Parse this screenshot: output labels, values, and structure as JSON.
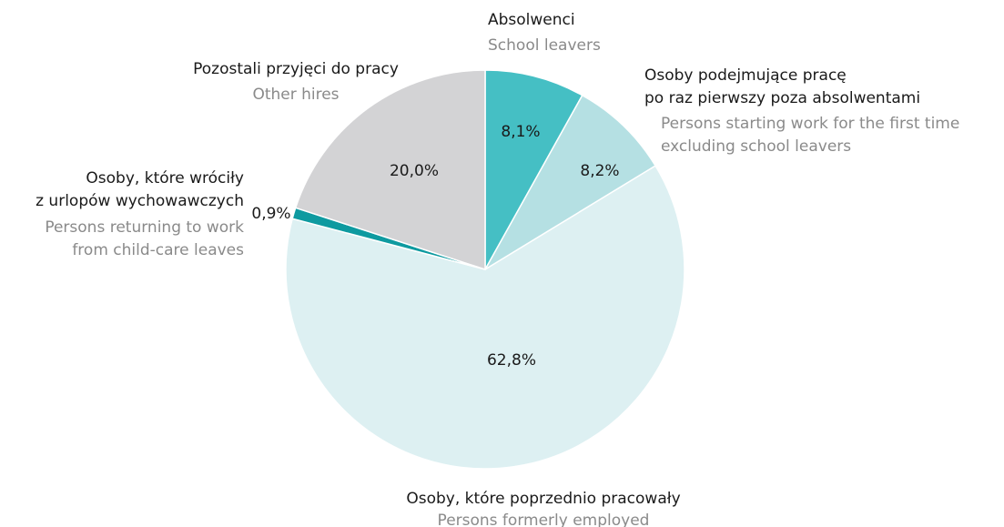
{
  "chart_data": {
    "type": "pie",
    "categories": [
      [
        "Absolwenci"
      ],
      [
        "Osoby podejmujące pracę",
        "po raz pierwszy poza absolwentami"
      ],
      [
        "Osoby, które poprzednio pracowały"
      ],
      [
        "Osoby, które wróciły",
        "z urlopów wychowawczych"
      ],
      [
        "Pozostali przyjęci do pracy"
      ]
    ],
    "category_translations": [
      [
        "School leavers"
      ],
      [
        "Persons starting work for the first time",
        "excluding school leavers"
      ],
      [
        "Persons formerly employed"
      ],
      [
        "Persons returning to work",
        "from child-care leaves"
      ],
      [
        "Other hires"
      ]
    ],
    "values": [
      8.1,
      8.2,
      62.8,
      0.9,
      20.0
    ],
    "value_labels": [
      "8,1%",
      "8,2%",
      "62,8%",
      "0,9%",
      "20,0%"
    ],
    "colors": [
      "#45bfc4",
      "#b5e0e3",
      "#ddf0f2",
      "#0e9aa0",
      "#d3d3d5"
    ]
  }
}
